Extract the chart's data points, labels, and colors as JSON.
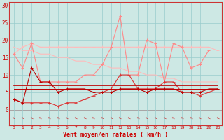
{
  "xlabel": "Vent moyen/en rafales ( km/h )",
  "bg_color": "#cde8e4",
  "x": [
    0,
    1,
    2,
    3,
    4,
    5,
    6,
    7,
    8,
    9,
    10,
    11,
    12,
    13,
    14,
    15,
    16,
    17,
    18,
    19,
    20,
    21,
    22,
    23
  ],
  "series_gust_hist": [
    16,
    18,
    19,
    18,
    18,
    18,
    18,
    18,
    18,
    18,
    18,
    18,
    18,
    18,
    18,
    18,
    18,
    18,
    18,
    18,
    18,
    18,
    18,
    17
  ],
  "series_trend": [
    18,
    17,
    17,
    16,
    16,
    15,
    15,
    14,
    14,
    13,
    13,
    12,
    12,
    11,
    11,
    10,
    10,
    9,
    9,
    8,
    8,
    8,
    8,
    8
  ],
  "series_gust_actual": [
    16,
    12,
    19,
    8,
    8,
    8,
    8,
    8,
    10,
    10,
    13,
    18,
    27,
    10,
    10,
    20,
    19,
    8,
    19,
    18,
    12,
    13,
    17,
    null
  ],
  "series_avg_wind": [
    3,
    2,
    2,
    2,
    2,
    1,
    2,
    2,
    3,
    4,
    5,
    6,
    10,
    10,
    6,
    6,
    6,
    8,
    8,
    5,
    5,
    4,
    5,
    6
  ],
  "series_flat_high": [
    7,
    7,
    7,
    7,
    7,
    7,
    7,
    7,
    7,
    7,
    7,
    7,
    7,
    7,
    7,
    7,
    7,
    7,
    7,
    7,
    7,
    7,
    7,
    7
  ],
  "series_flat_low": [
    6,
    6,
    6,
    6,
    6,
    6,
    6,
    6,
    6,
    6,
    6,
    6,
    6,
    6,
    6,
    6,
    6,
    6,
    6,
    6,
    6,
    6,
    6,
    6
  ],
  "series_wind_actual": [
    3,
    2,
    12,
    8,
    8,
    5,
    6,
    6,
    6,
    5,
    5,
    5,
    6,
    6,
    6,
    5,
    6,
    6,
    6,
    5,
    5,
    5,
    6,
    6
  ],
  "series_min_line": [
    4,
    2,
    2,
    2,
    2,
    1,
    2,
    2,
    2,
    2,
    2,
    3,
    10,
    10,
    6,
    6,
    6,
    8,
    8,
    5,
    5,
    4,
    4,
    6
  ],
  "ylim": [
    -4.5,
    31
  ],
  "xlim": [
    -0.5,
    23.5
  ],
  "yticks": [
    0,
    5,
    10,
    15,
    20,
    25,
    30
  ],
  "xticks": [
    0,
    1,
    2,
    3,
    4,
    5,
    6,
    7,
    8,
    9,
    10,
    11,
    12,
    13,
    14,
    15,
    16,
    17,
    18,
    19,
    20,
    21,
    22,
    23
  ]
}
